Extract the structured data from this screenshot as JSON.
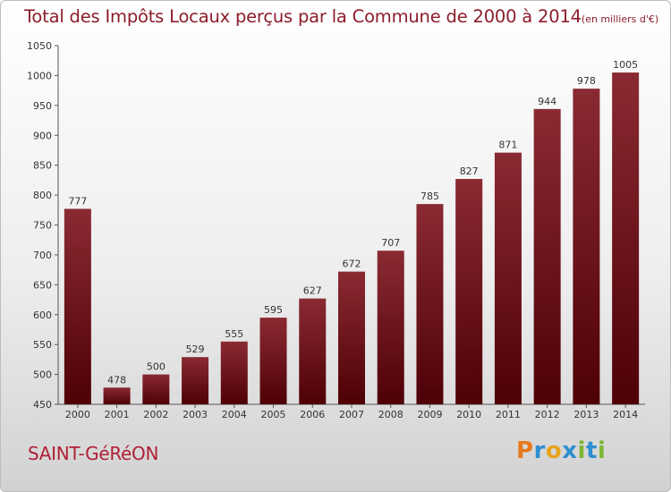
{
  "chart_data": {
    "type": "bar",
    "title": "Total des Impôts Locaux perçus par la Commune de 2000 à 2014",
    "unit": "(en milliers d'€)",
    "categories": [
      "2000",
      "2001",
      "2002",
      "2003",
      "2004",
      "2005",
      "2006",
      "2007",
      "2008",
      "2009",
      "2010",
      "2011",
      "2012",
      "2013",
      "2014"
    ],
    "values": [
      777,
      478,
      500,
      529,
      555,
      595,
      627,
      672,
      707,
      785,
      827,
      871,
      944,
      978,
      1005
    ],
    "ylim": [
      450,
      1050
    ],
    "yticks": [
      450,
      500,
      550,
      600,
      650,
      700,
      750,
      800,
      850,
      900,
      950,
      1000,
      1050
    ],
    "xlabel": "",
    "ylabel": "",
    "bar_color": "#7a1a22",
    "grid": false
  },
  "commune": "SAINT-GéRéON",
  "brand": {
    "letters": [
      "P",
      "r",
      "o",
      "x",
      "i",
      "t",
      "i"
    ],
    "colors": [
      "#e8791e",
      "#2d8fd0",
      "#e8a31e",
      "#2d8fd0",
      "#7cb631",
      "#2d8fd0",
      "#7cb631"
    ]
  }
}
